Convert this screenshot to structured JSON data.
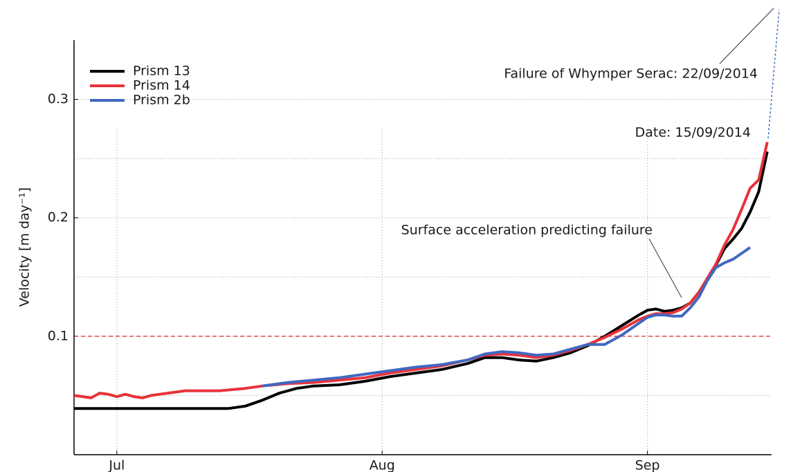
{
  "chart_data": {
    "type": "line",
    "y_label": "Velocity [m day⁻¹]",
    "xlim": [
      177,
      258.5
    ],
    "xticks": [
      {
        "value": 182,
        "label": "Jul"
      },
      {
        "value": 213,
        "label": "Aug"
      },
      {
        "value": 244,
        "label": "Sep"
      }
    ],
    "ylim": [
      0,
      0.35
    ],
    "yticks": [
      0.1,
      0.2,
      0.3
    ],
    "y_minor_grid": [
      0.05,
      0.15,
      0.25
    ],
    "grid": true,
    "legend": "upper left",
    "threshold": {
      "value": 0.1,
      "color": "#e0202a"
    },
    "annotations": [
      "Failure of Whymper Serac: 22/09/2014",
      "Date: 15/09/2014",
      "Surface acceleration predicting failure"
    ],
    "series": [
      {
        "name": "Prism 13",
        "color": "#000000",
        "x": [
          177,
          195,
          197,
          199,
          201,
          203,
          205,
          208,
          211,
          214,
          217,
          220,
          223,
          225,
          227,
          229,
          231,
          233,
          235,
          237,
          239,
          241,
          243,
          244,
          245,
          246,
          247,
          248,
          249,
          250,
          251,
          252,
          253,
          254,
          255,
          256,
          257,
          258
        ],
        "values": [
          0.039,
          0.039,
          0.041,
          0.046,
          0.052,
          0.056,
          0.058,
          0.059,
          0.062,
          0.066,
          0.069,
          0.072,
          0.077,
          0.082,
          0.082,
          0.08,
          0.079,
          0.082,
          0.086,
          0.092,
          0.1,
          0.109,
          0.118,
          0.122,
          0.123,
          0.121,
          0.122,
          0.124,
          0.128,
          0.137,
          0.148,
          0.16,
          0.174,
          0.182,
          0.191,
          0.205,
          0.222,
          0.256
        ]
      },
      {
        "name": "Prism 14",
        "color": "#e8323a",
        "x": [
          177,
          178,
          179,
          180,
          181,
          182,
          183,
          184,
          185,
          186,
          188,
          190,
          194,
          197,
          199,
          202,
          205,
          208,
          211,
          214,
          217,
          220,
          223,
          225,
          227,
          229,
          231,
          233,
          235,
          237,
          239,
          241,
          243,
          244,
          245,
          246,
          247,
          248,
          249,
          250,
          251,
          252,
          253,
          254,
          255,
          256,
          257,
          258
        ],
        "values": [
          0.05,
          0.049,
          0.048,
          0.052,
          0.051,
          0.049,
          0.051,
          0.049,
          0.048,
          0.05,
          0.052,
          0.054,
          0.054,
          0.056,
          0.058,
          0.06,
          0.061,
          0.063,
          0.065,
          0.069,
          0.072,
          0.075,
          0.08,
          0.084,
          0.085,
          0.084,
          0.082,
          0.084,
          0.088,
          0.093,
          0.099,
          0.106,
          0.114,
          0.117,
          0.119,
          0.119,
          0.12,
          0.123,
          0.128,
          0.137,
          0.149,
          0.161,
          0.177,
          0.19,
          0.207,
          0.225,
          0.232,
          0.264
        ]
      },
      {
        "name": "Prism 2b",
        "color": "#4068c0",
        "x": [
          199,
          202,
          205,
          208,
          211,
          214,
          217,
          220,
          223,
          225,
          227,
          229,
          231,
          233,
          235,
          237,
          239,
          241,
          243,
          244,
          245,
          246,
          247,
          248,
          249,
          250,
          251,
          252,
          253,
          254,
          255,
          256
        ],
        "values": [
          0.058,
          0.061,
          0.063,
          0.065,
          0.068,
          0.071,
          0.074,
          0.076,
          0.08,
          0.085,
          0.087,
          0.086,
          0.084,
          0.085,
          0.089,
          0.093,
          0.093,
          0.101,
          0.111,
          0.116,
          0.118,
          0.118,
          0.117,
          0.117,
          0.124,
          0.133,
          0.147,
          0.158,
          0.162,
          0.165,
          0.17,
          0.175
        ]
      }
    ]
  }
}
